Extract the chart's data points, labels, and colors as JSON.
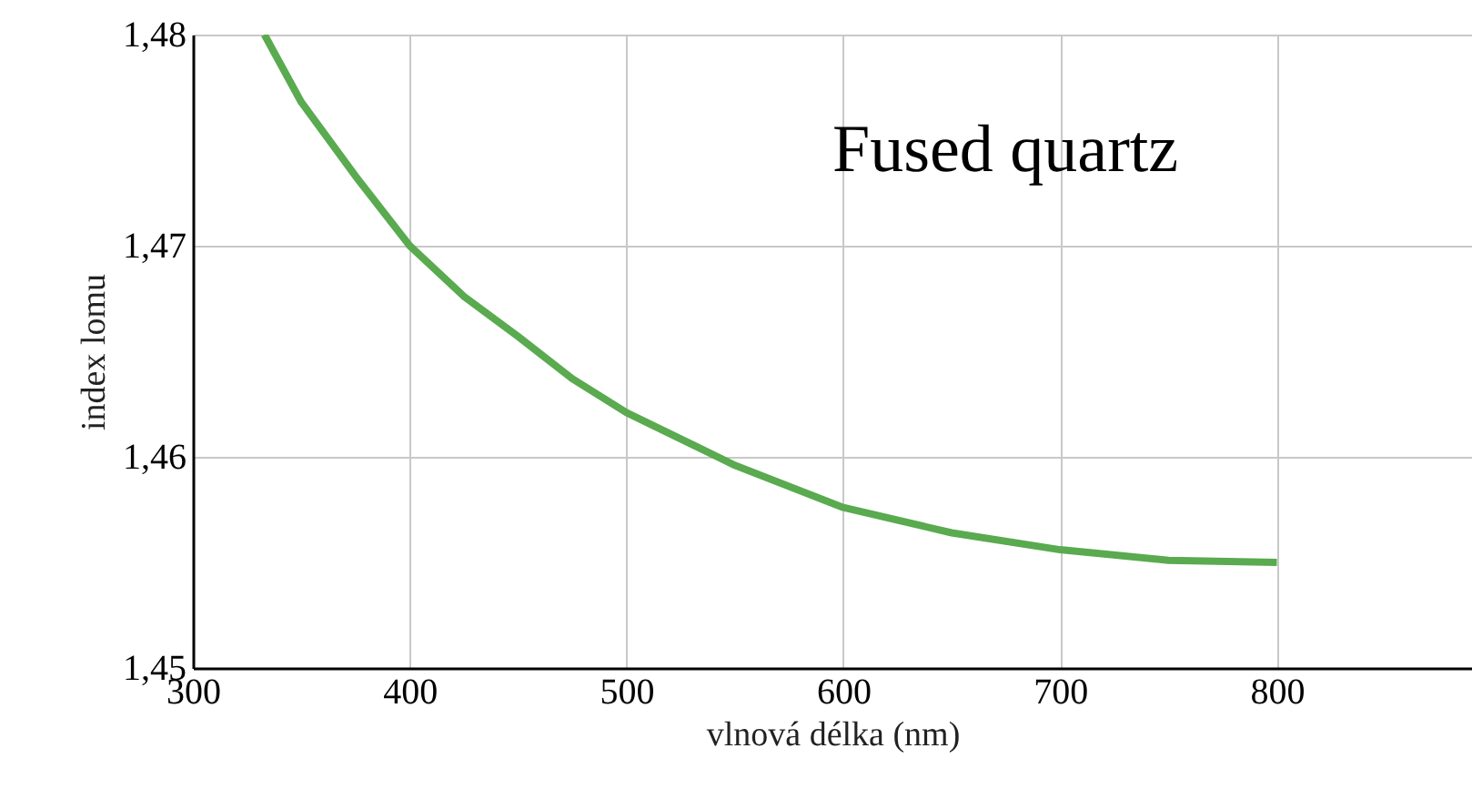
{
  "chart_data": {
    "type": "line",
    "xlabel": "vlnová délka (nm)",
    "ylabel": "index lomu",
    "annotations": [
      "Fused quartz"
    ],
    "x": [
      333,
      350,
      375,
      400,
      425,
      450,
      475,
      500,
      550,
      600,
      650,
      700,
      750,
      800
    ],
    "series": [
      {
        "color": "#5aaa50",
        "values": [
          1.48,
          1.4768,
          1.4733,
          1.47,
          1.4676,
          1.4657,
          1.4637,
          1.4621,
          1.4596,
          1.4576,
          1.4564,
          1.4556,
          1.4551,
          1.455
        ]
      }
    ],
    "xlim": [
      300,
      890
    ],
    "xticks": [
      300,
      400,
      500,
      600,
      700,
      800
    ],
    "ylim": [
      1.45,
      1.48
    ],
    "yticks": [
      {
        "value": 1.45,
        "label": "1,45"
      },
      {
        "value": 1.46,
        "label": "1,46"
      },
      {
        "value": 1.47,
        "label": "1,47"
      },
      {
        "value": 1.48,
        "label": "1,48"
      }
    ],
    "grid": true,
    "marker": "none",
    "line_style": "solid"
  }
}
